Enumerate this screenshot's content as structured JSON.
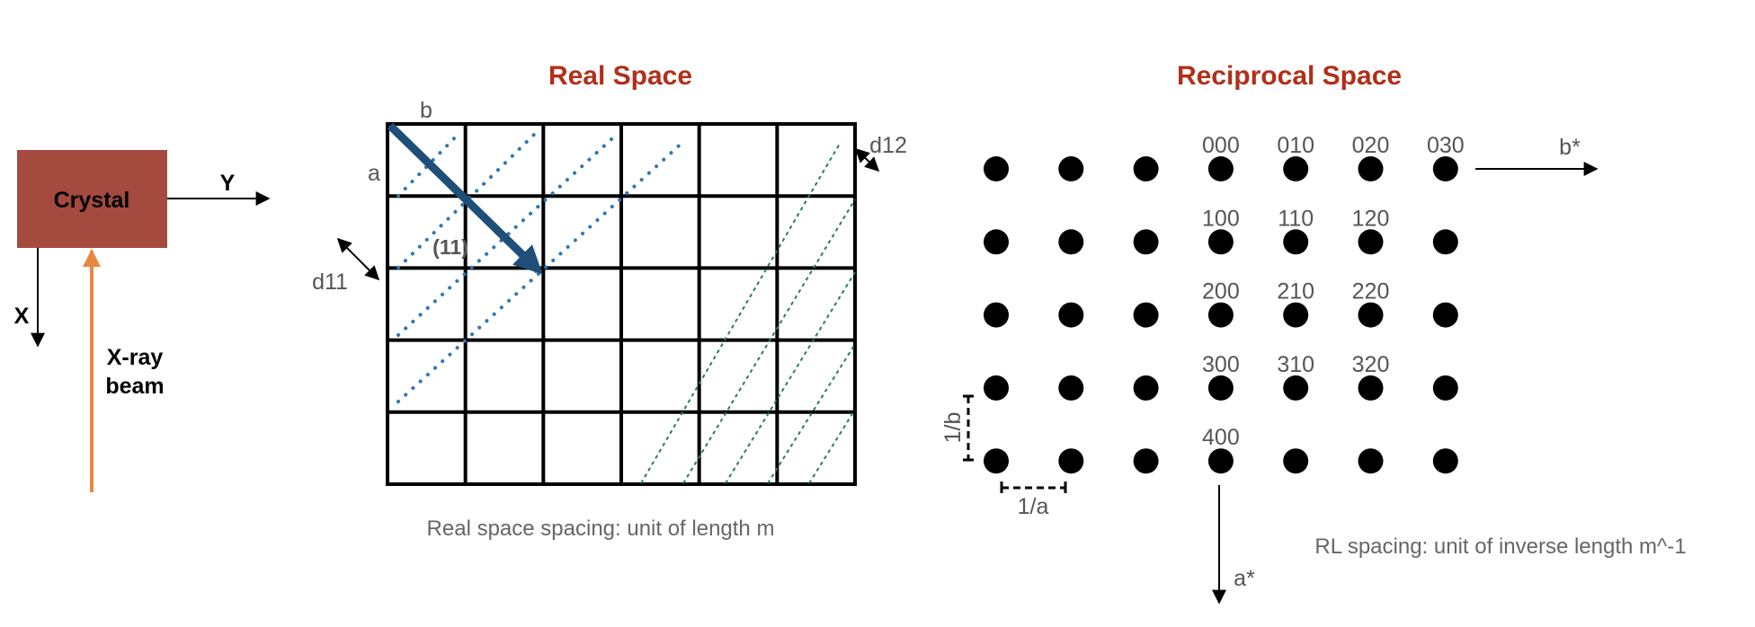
{
  "colors": {
    "title": "#b03019",
    "crystal_fill": "#a44a3f",
    "beam": "#e88840",
    "arrow_blue": "#1f4e79",
    "dots_blue": "#2e75b6",
    "dashes_green": "#2e7d4f"
  },
  "left": {
    "crystal_label": "Crystal",
    "axis_y": "Y",
    "axis_x": "X",
    "beam_line1": "X-ray",
    "beam_line2": "beam"
  },
  "real_space": {
    "title": "Real Space",
    "label_b": "b",
    "label_a": "a",
    "label_d12": "d12",
    "label_d11": "d11",
    "label_plane": "(11)",
    "caption": "Real space spacing: unit of length m",
    "grid": {
      "rows": 5,
      "cols": 6
    }
  },
  "reciprocal_space": {
    "title": "Reciprocal Space",
    "axis_b": "b*",
    "axis_a": "a*",
    "spacing_b": "1/b",
    "spacing_a": "1/a",
    "caption": "RL spacing: unit of inverse length m^-1",
    "lattice": {
      "rows": 5,
      "cols": 7
    },
    "index_labels": [
      [
        "000",
        "010",
        "020",
        "030"
      ],
      [
        "100",
        "110",
        "120"
      ],
      [
        "200",
        "210",
        "220"
      ],
      [
        "300",
        "310",
        "320"
      ],
      [
        "400"
      ]
    ]
  }
}
